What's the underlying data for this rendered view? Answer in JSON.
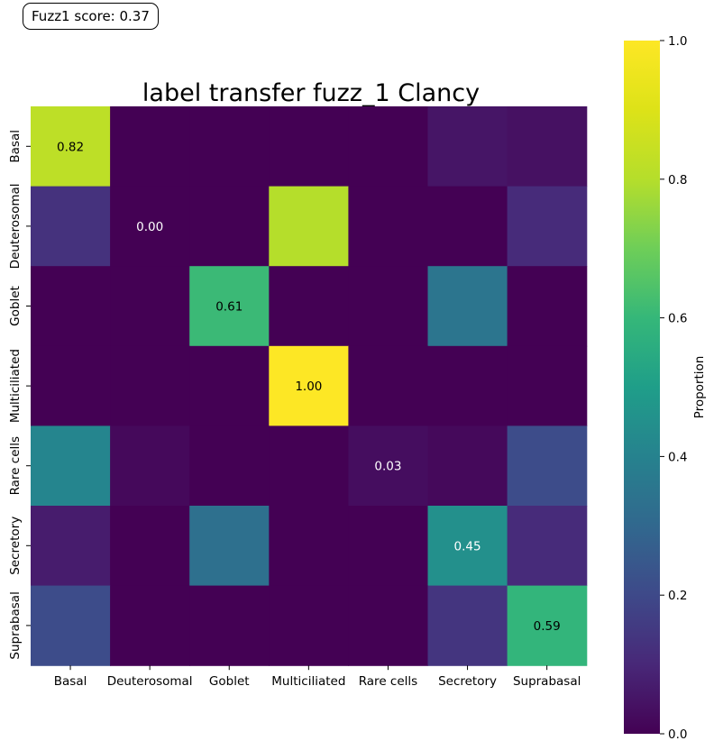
{
  "score_badge": {
    "text": "Fuzz1 score: 0.37"
  },
  "chart_data": {
    "type": "heatmap",
    "title": "label transfer fuzz_1 Clancy",
    "xlabel": "",
    "ylabel": "",
    "x_categories": [
      "Basal",
      "Deuterosomal",
      "Goblet",
      "Multiciliated",
      "Rare cells",
      "Secretory",
      "Suprabasal"
    ],
    "y_categories": [
      "Basal",
      "Deuterosomal",
      "Goblet",
      "Multiciliated",
      "Rare cells",
      "Secretory",
      "Suprabasal"
    ],
    "values": [
      [
        0.82,
        0.0,
        0.0,
        0.0,
        0.0,
        0.05,
        0.04
      ],
      [
        0.13,
        0.0,
        0.0,
        0.8,
        0.0,
        0.0,
        0.11
      ],
      [
        0.0,
        0.0,
        0.61,
        0.0,
        0.0,
        0.35,
        0.0
      ],
      [
        0.0,
        0.0,
        0.0,
        1.0,
        0.0,
        0.0,
        0.0
      ],
      [
        0.41,
        0.02,
        0.0,
        0.0,
        0.03,
        0.02,
        0.21
      ],
      [
        0.07,
        0.0,
        0.33,
        0.0,
        0.0,
        0.45,
        0.11
      ],
      [
        0.21,
        0.0,
        0.0,
        0.0,
        0.0,
        0.14,
        0.59
      ]
    ],
    "annotations": [
      {
        "row": 0,
        "col": 0,
        "text": "0.82"
      },
      {
        "row": 1,
        "col": 1,
        "text": "0.00"
      },
      {
        "row": 2,
        "col": 2,
        "text": "0.61"
      },
      {
        "row": 3,
        "col": 3,
        "text": "1.00"
      },
      {
        "row": 4,
        "col": 4,
        "text": "0.03"
      },
      {
        "row": 5,
        "col": 5,
        "text": "0.45"
      },
      {
        "row": 6,
        "col": 6,
        "text": "0.59"
      }
    ],
    "colormap": "viridis",
    "colorbar": {
      "label": "Proportion",
      "range": [
        0.0,
        1.0
      ],
      "ticks": [
        0.0,
        0.2,
        0.4,
        0.6,
        0.8,
        1.0
      ],
      "tick_labels": [
        "0.0",
        "0.2",
        "0.4",
        "0.6",
        "0.8",
        "1.0"
      ]
    },
    "grid": false,
    "legend": "none"
  }
}
